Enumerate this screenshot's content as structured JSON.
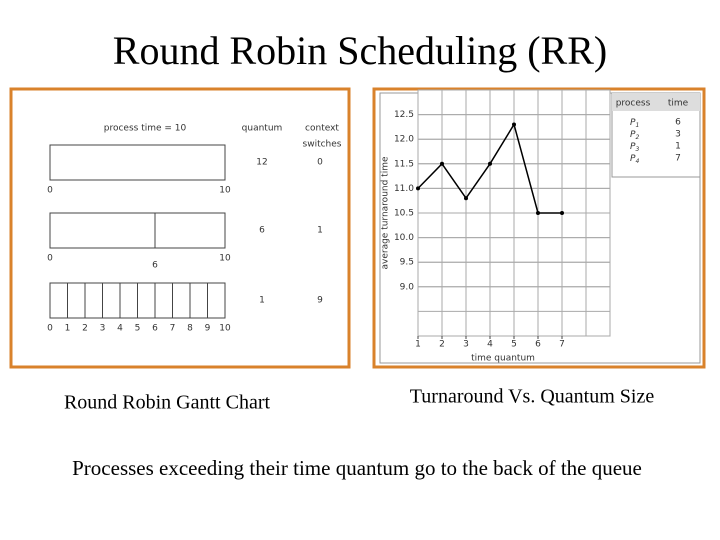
{
  "title": "Round Robin Scheduling (RR)",
  "gantt": {
    "header": {
      "process_time": "process time = 10",
      "quantum": "quantum",
      "context": "context",
      "switches": "switches"
    },
    "rows": [
      {
        "quantum": "12",
        "switches": "0",
        "ticks": [
          0,
          10
        ]
      },
      {
        "quantum": "6",
        "switches": "1",
        "ticks": [
          0,
          6,
          10
        ]
      },
      {
        "quantum": "1",
        "switches": "9",
        "ticks": [
          0,
          1,
          2,
          3,
          4,
          5,
          6,
          7,
          8,
          9,
          10
        ]
      }
    ]
  },
  "chart_data": {
    "type": "line",
    "y_label": "average turnaround time",
    "x_label": "time quantum",
    "x": [
      1,
      2,
      3,
      4,
      5,
      6,
      7
    ],
    "values": [
      11.0,
      11.5,
      10.8,
      11.5,
      12.3,
      10.5,
      10.5
    ],
    "color": "#000000",
    "xlim": [
      1,
      9
    ],
    "xticks": [
      1,
      2,
      3,
      4,
      5,
      6,
      7
    ],
    "ylim": [
      8.0,
      13.0
    ],
    "yticks": [
      {
        "value": 9,
        "label": "9.0"
      },
      {
        "value": 9.5,
        "label": "9.5"
      },
      {
        "value": 10,
        "label": "10.0"
      },
      {
        "value": 10.5,
        "label": "10.5"
      },
      {
        "value": 11,
        "label": "11.0"
      },
      {
        "value": 11.5,
        "label": "11.5"
      },
      {
        "value": 12,
        "label": "12.0"
      },
      {
        "value": 12.5,
        "label": "12.5"
      }
    ],
    "grid": true
  },
  "process_table": {
    "header": [
      "process",
      "time"
    ],
    "rows": [
      {
        "name": "P",
        "sub": "1",
        "time": "6"
      },
      {
        "name": "P",
        "sub": "2",
        "time": "3"
      },
      {
        "name": "P",
        "sub": "3",
        "time": "1"
      },
      {
        "name": "P",
        "sub": "4",
        "time": "7"
      }
    ]
  },
  "captions": {
    "left": "Round Robin Gantt Chart",
    "right": "Turnaround Vs. Quantum Size"
  },
  "footer": "Processes exceeding their time quantum go to the back of the queue"
}
